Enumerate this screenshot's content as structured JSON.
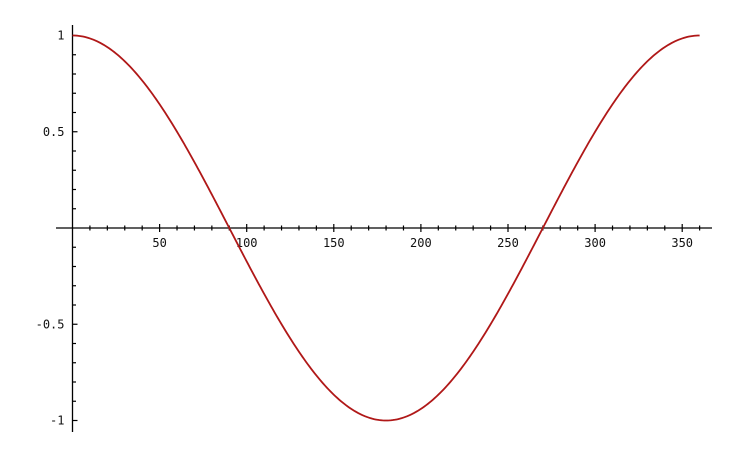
{
  "chart_data": {
    "type": "line",
    "title": "",
    "xlabel": "",
    "ylabel": "",
    "xlim": [
      0,
      360
    ],
    "ylim": [
      -1,
      1
    ],
    "x_ticks": [
      50,
      100,
      150,
      200,
      250,
      300,
      350
    ],
    "x_tick_labels": [
      "50",
      "100",
      "150",
      "200",
      "250",
      "300",
      "350"
    ],
    "x_minor_step": 10,
    "y_ticks": [
      1,
      0.5,
      -0.5,
      -1
    ],
    "y_tick_labels": [
      "1",
      "0.5",
      "-0.5",
      "-1"
    ],
    "y_minor_step": 0.1,
    "grid": false,
    "series": [
      {
        "function": "cos(x degrees)",
        "x_start": 0,
        "x_end": 360,
        "color": "#b01818",
        "x": [
          0,
          30,
          60,
          90,
          120,
          150,
          180,
          210,
          240,
          270,
          300,
          330,
          360
        ],
        "y": [
          1,
          0.866,
          0.5,
          0,
          -0.5,
          -0.866,
          -1,
          -0.866,
          -0.5,
          0,
          0.5,
          0.866,
          1
        ]
      }
    ],
    "axis_color": "#000000"
  }
}
